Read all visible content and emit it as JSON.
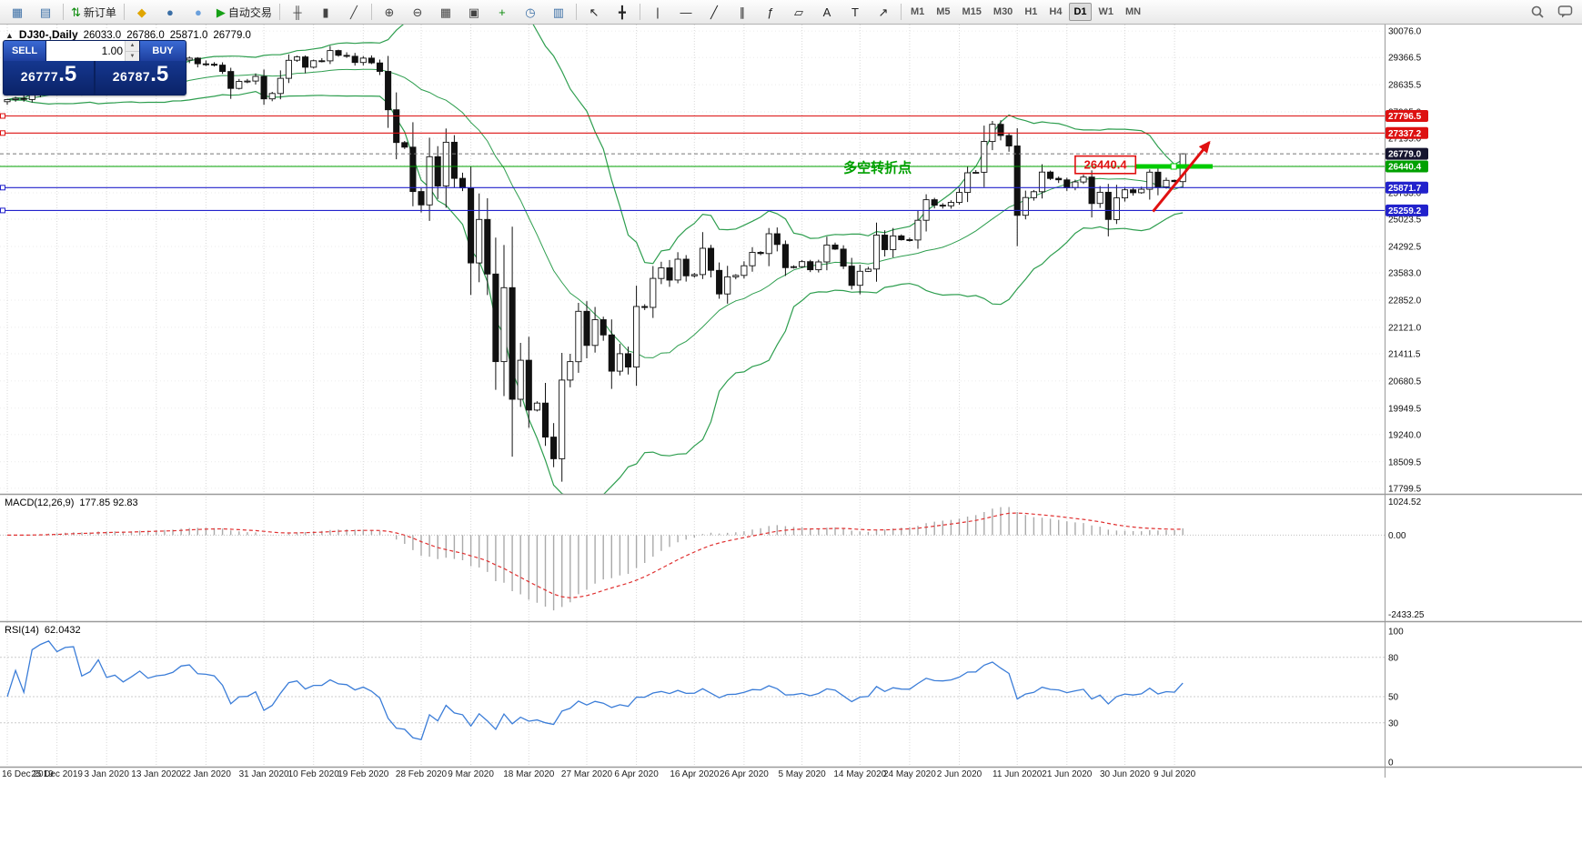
{
  "toolbar": {
    "items": [
      {
        "name": "new-chart-button",
        "glyph": "▦",
        "color": "#3a6ea5"
      },
      {
        "name": "profiles-button",
        "glyph": "▤",
        "color": "#3a6ea5"
      },
      {
        "name": "sep"
      },
      {
        "name": "new-order-button",
        "glyph": "⇅",
        "label": "新订单",
        "color": "#0a8a0a"
      },
      {
        "name": "sep"
      },
      {
        "name": "favorites-button",
        "glyph": "◆",
        "color": "#e0a500"
      },
      {
        "name": "community-button",
        "glyph": "●",
        "color": "#3a6ea5"
      },
      {
        "name": "chat-users-button",
        "glyph": "●",
        "color": "#6aa0dc"
      },
      {
        "name": "autotrade-button",
        "glyph": "▶",
        "label": "自动交易",
        "color": "#15a015"
      },
      {
        "name": "sep"
      },
      {
        "name": "bar-chart-mode-button",
        "glyph": "╫",
        "color": "#444444"
      },
      {
        "name": "candle-chart-mode-button",
        "glyph": "▮",
        "color": "#444444"
      },
      {
        "name": "line-chart-mode-button",
        "glyph": "╱",
        "color": "#444444"
      },
      {
        "name": "sep"
      },
      {
        "name": "zoom-in-button",
        "glyph": "⊕",
        "color": "#444444"
      },
      {
        "name": "zoom-out-button",
        "glyph": "⊖",
        "color": "#444444"
      },
      {
        "name": "tile-windows-button",
        "glyph": "▦",
        "color": "#444444"
      },
      {
        "name": "arrange-windows-button",
        "glyph": "▣",
        "color": "#444444"
      },
      {
        "name": "add-indicator-button",
        "glyph": "+",
        "color": "#0a8a0a"
      },
      {
        "name": "periods-button",
        "glyph": "◷",
        "color": "#3a6ea5"
      },
      {
        "name": "templates-button",
        "glyph": "▥",
        "color": "#3a6ea5"
      },
      {
        "name": "sep"
      },
      {
        "name": "cursor-tool-button",
        "glyph": "↖",
        "color": "#222222"
      },
      {
        "name": "crosshair-tool-button",
        "glyph": "╋",
        "color": "#222222"
      },
      {
        "name": "sep"
      },
      {
        "name": "vertical-line-tool-button",
        "glyph": "|",
        "color": "#222222"
      },
      {
        "name": "horizontal-line-tool-button",
        "glyph": "—",
        "color": "#222222"
      },
      {
        "name": "trendline-tool-button",
        "glyph": "╱",
        "color": "#222222"
      },
      {
        "name": "channel-tool-button",
        "glyph": "∥",
        "color": "#222222"
      },
      {
        "name": "fibonacci-tool-button",
        "glyph": "ƒ",
        "color": "#222222"
      },
      {
        "name": "shapes-tool-button",
        "glyph": "▱",
        "color": "#222222"
      },
      {
        "name": "text-tool-button",
        "glyph": "A",
        "color": "#222222"
      },
      {
        "name": "label-tool-button",
        "glyph": "T",
        "color": "#222222"
      },
      {
        "name": "arrow-tool-button",
        "glyph": "↗",
        "color": "#222222"
      },
      {
        "name": "sep"
      }
    ],
    "timeframes": [
      "M1",
      "M5",
      "M15",
      "M30",
      "H1",
      "H4",
      "D1",
      "W1",
      "MN"
    ],
    "active_timeframe": "D1"
  },
  "header": {
    "collapse_icon": "▲",
    "symbol": "DJ30-,Daily",
    "open": "26033.0",
    "high": "26786.0",
    "low": "25871.0",
    "close": "26779.0"
  },
  "one_click": {
    "sell_label": "SELL",
    "buy_label": "BUY",
    "lot": "1.00",
    "spin_up": "▲",
    "spin_down": "▼",
    "sell_price": "26777",
    "sell_frac": ".5",
    "buy_price": "26787",
    "buy_frac": ".5"
  },
  "indicators": {
    "macd_label": "MACD(12,26,9)",
    "macd_values": "177.85 92.83",
    "rsi_label": "RSI(14)",
    "rsi_value": "62.0432"
  },
  "colors": {
    "bull": "#ffffff",
    "bear": "#111111",
    "wick": "#111111",
    "bollinger": "#2e9e4f",
    "macd_hist": "#aaaaaa",
    "macd_signal": "#e03030",
    "rsi_line": "#3b7dd8",
    "grid_v": "#d8d8d8",
    "grid_h": "#ebebeb",
    "level_red": "#dd1111",
    "level_green": "#00a000",
    "level_blue": "#2222cc",
    "current_badge": "#15152f",
    "panel_navy": "#10307f"
  },
  "levels": [
    {
      "value": 27796.5,
      "label": "27796.5",
      "color": "#dd1111",
      "handle": true
    },
    {
      "value": 27337.2,
      "label": "27337.2",
      "color": "#dd1111",
      "handle": true
    },
    {
      "value": 26440.4,
      "label": "26440.4",
      "color": "#00a000",
      "handle": false
    },
    {
      "value": 25871.7,
      "label": "25871.7",
      "color": "#2222cc",
      "handle": true
    },
    {
      "value": 25259.2,
      "label": "25259.2",
      "color": "#2222cc",
      "handle": true
    }
  ],
  "current_price": {
    "value": 26779.0,
    "label": "26779.0"
  },
  "annotations": {
    "price_box": {
      "label": "26440.4",
      "color": "#e01010",
      "bar_from": 129,
      "bar_to": 136.3,
      "price_top": 26720,
      "price_bottom": 26250
    },
    "cn_text": {
      "text": "多空转折点",
      "color": "#00a000",
      "bar": 101,
      "price": 26280
    },
    "thick_level": {
      "color": "#00cc00",
      "price": 26440.4,
      "bar_from": 136.2,
      "bar_to": 145.6,
      "width": 5
    },
    "arrow": {
      "color": "#e01010",
      "from_bar": 138.4,
      "from_price": 25230,
      "to_bar": 145.2,
      "to_price": 27090
    }
  },
  "axes": {
    "price_ticks": [
      "30076.0",
      "29366.5",
      "28635.5",
      "27905.0",
      "27195.0",
      "26464.0",
      "25733.0",
      "25023.5",
      "24292.5",
      "23583.0",
      "22852.0",
      "22121.0",
      "21411.5",
      "20680.5",
      "19949.5",
      "19240.0",
      "18509.5",
      "17799.5"
    ],
    "macd_ticks": [
      {
        "v": 1024.52,
        "label": "1024.52"
      },
      {
        "v": 0,
        "label": "0.00"
      },
      {
        "v": -2433.25,
        "label": "-2433.25"
      }
    ],
    "rsi_ticks": [
      {
        "v": 100,
        "label": "100"
      },
      {
        "v": 80,
        "label": "80"
      },
      {
        "v": 50,
        "label": "50"
      },
      {
        "v": 30,
        "label": "30"
      },
      {
        "v": 0,
        "label": "0"
      }
    ],
    "rsi_levels": [
      80,
      50,
      30
    ]
  },
  "chart_data": [
    {
      "type": "candlestick",
      "title": "DJ30-,Daily",
      "bars": 143,
      "estimated": true,
      "ylim": [
        17650,
        30250
      ],
      "last_bar_ohlc": {
        "open": 26033.0,
        "high": 26786.0,
        "low": 25871.0,
        "close": 26779.0
      },
      "closes": [
        28235,
        28267,
        28239,
        28377,
        28455,
        28551,
        28515,
        28621,
        28645,
        28462,
        28538,
        28869,
        28635,
        28704,
        28584,
        28745,
        28957,
        28824,
        28907,
        28939,
        29030,
        29297,
        29348,
        29196,
        29186,
        29160,
        28990,
        28536,
        28723,
        28734,
        28859,
        28256,
        28400,
        28808,
        29291,
        29380,
        29103,
        29277,
        29276,
        29551,
        29423,
        29398,
        29232,
        29348,
        29220,
        28992,
        27961,
        27081,
        26958,
        25767,
        25409,
        26703,
        25917,
        27091,
        26121,
        25865,
        23851,
        25018,
        23553,
        21201,
        23186,
        20189,
        21237,
        19899,
        20087,
        19174,
        18592,
        20705,
        21200,
        22552,
        21637,
        22327,
        21917,
        20944,
        21413,
        21053,
        22680,
        22654,
        23434,
        23719,
        23390,
        23950,
        23504,
        23537,
        24242,
        23650,
        23018,
        23476,
        23515,
        23775,
        24134,
        24102,
        24634,
        24346,
        23724,
        23749,
        23883,
        23665,
        23876,
        24331,
        24222,
        23765,
        23248,
        23625,
        23685,
        24597,
        24207,
        24576,
        24474,
        24465,
        24995,
        25548,
        25401,
        25383,
        25475,
        25743,
        26270,
        26282,
        27111,
        27572,
        27272,
        26990,
        25128,
        25605,
        25763,
        26290,
        26120,
        26080,
        25871,
        26025,
        26156,
        25446,
        25746,
        25016,
        25596,
        25813,
        25735,
        25827,
        26287,
        25890,
        26067,
        26033,
        26779
      ],
      "time_ticks": [
        {
          "i": 0,
          "label": "16 Dec 2019"
        },
        {
          "i": 6,
          "label": "25 Dec 2019"
        },
        {
          "i": 12,
          "label": "3 Jan 2020"
        },
        {
          "i": 18,
          "label": "13 Jan 2020"
        },
        {
          "i": 24,
          "label": "22 Jan 2020"
        },
        {
          "i": 31,
          "label": "31 Jan 2020"
        },
        {
          "i": 37,
          "label": "10 Feb 2020"
        },
        {
          "i": 43,
          "label": "19 Feb 2020"
        },
        {
          "i": 50,
          "label": "28 Feb 2020"
        },
        {
          "i": 56,
          "label": "9 Mar 2020"
        },
        {
          "i": 63,
          "label": "18 Mar 2020"
        },
        {
          "i": 70,
          "label": "27 Mar 2020"
        },
        {
          "i": 76,
          "label": "6 Apr 2020"
        },
        {
          "i": 83,
          "label": "16 Apr 2020"
        },
        {
          "i": 89,
          "label": "26 Apr 2020"
        },
        {
          "i": 96,
          "label": "5 May 2020"
        },
        {
          "i": 103,
          "label": "14 May 2020"
        },
        {
          "i": 109,
          "label": "24 May 2020"
        },
        {
          "i": 115,
          "label": "2 Jun 2020"
        },
        {
          "i": 122,
          "label": "11 Jun 2020"
        },
        {
          "i": 128,
          "label": "21 Jun 2020"
        },
        {
          "i": 135,
          "label": "30 Jun 2020"
        },
        {
          "i": 141,
          "label": "9 Jul 2020"
        }
      ],
      "overlays": [
        "Bollinger Bands 20,2 (green)"
      ]
    },
    {
      "type": "bar",
      "name": "MACD(12,26,9)",
      "display_values": "177.85 92.83",
      "ylim": [
        -2500,
        1100
      ],
      "derived_from_closes": true
    },
    {
      "type": "line",
      "name": "RSI(14)",
      "display_value": "62.0432",
      "ylim": [
        0,
        100
      ],
      "derived_from_closes": true
    }
  ]
}
